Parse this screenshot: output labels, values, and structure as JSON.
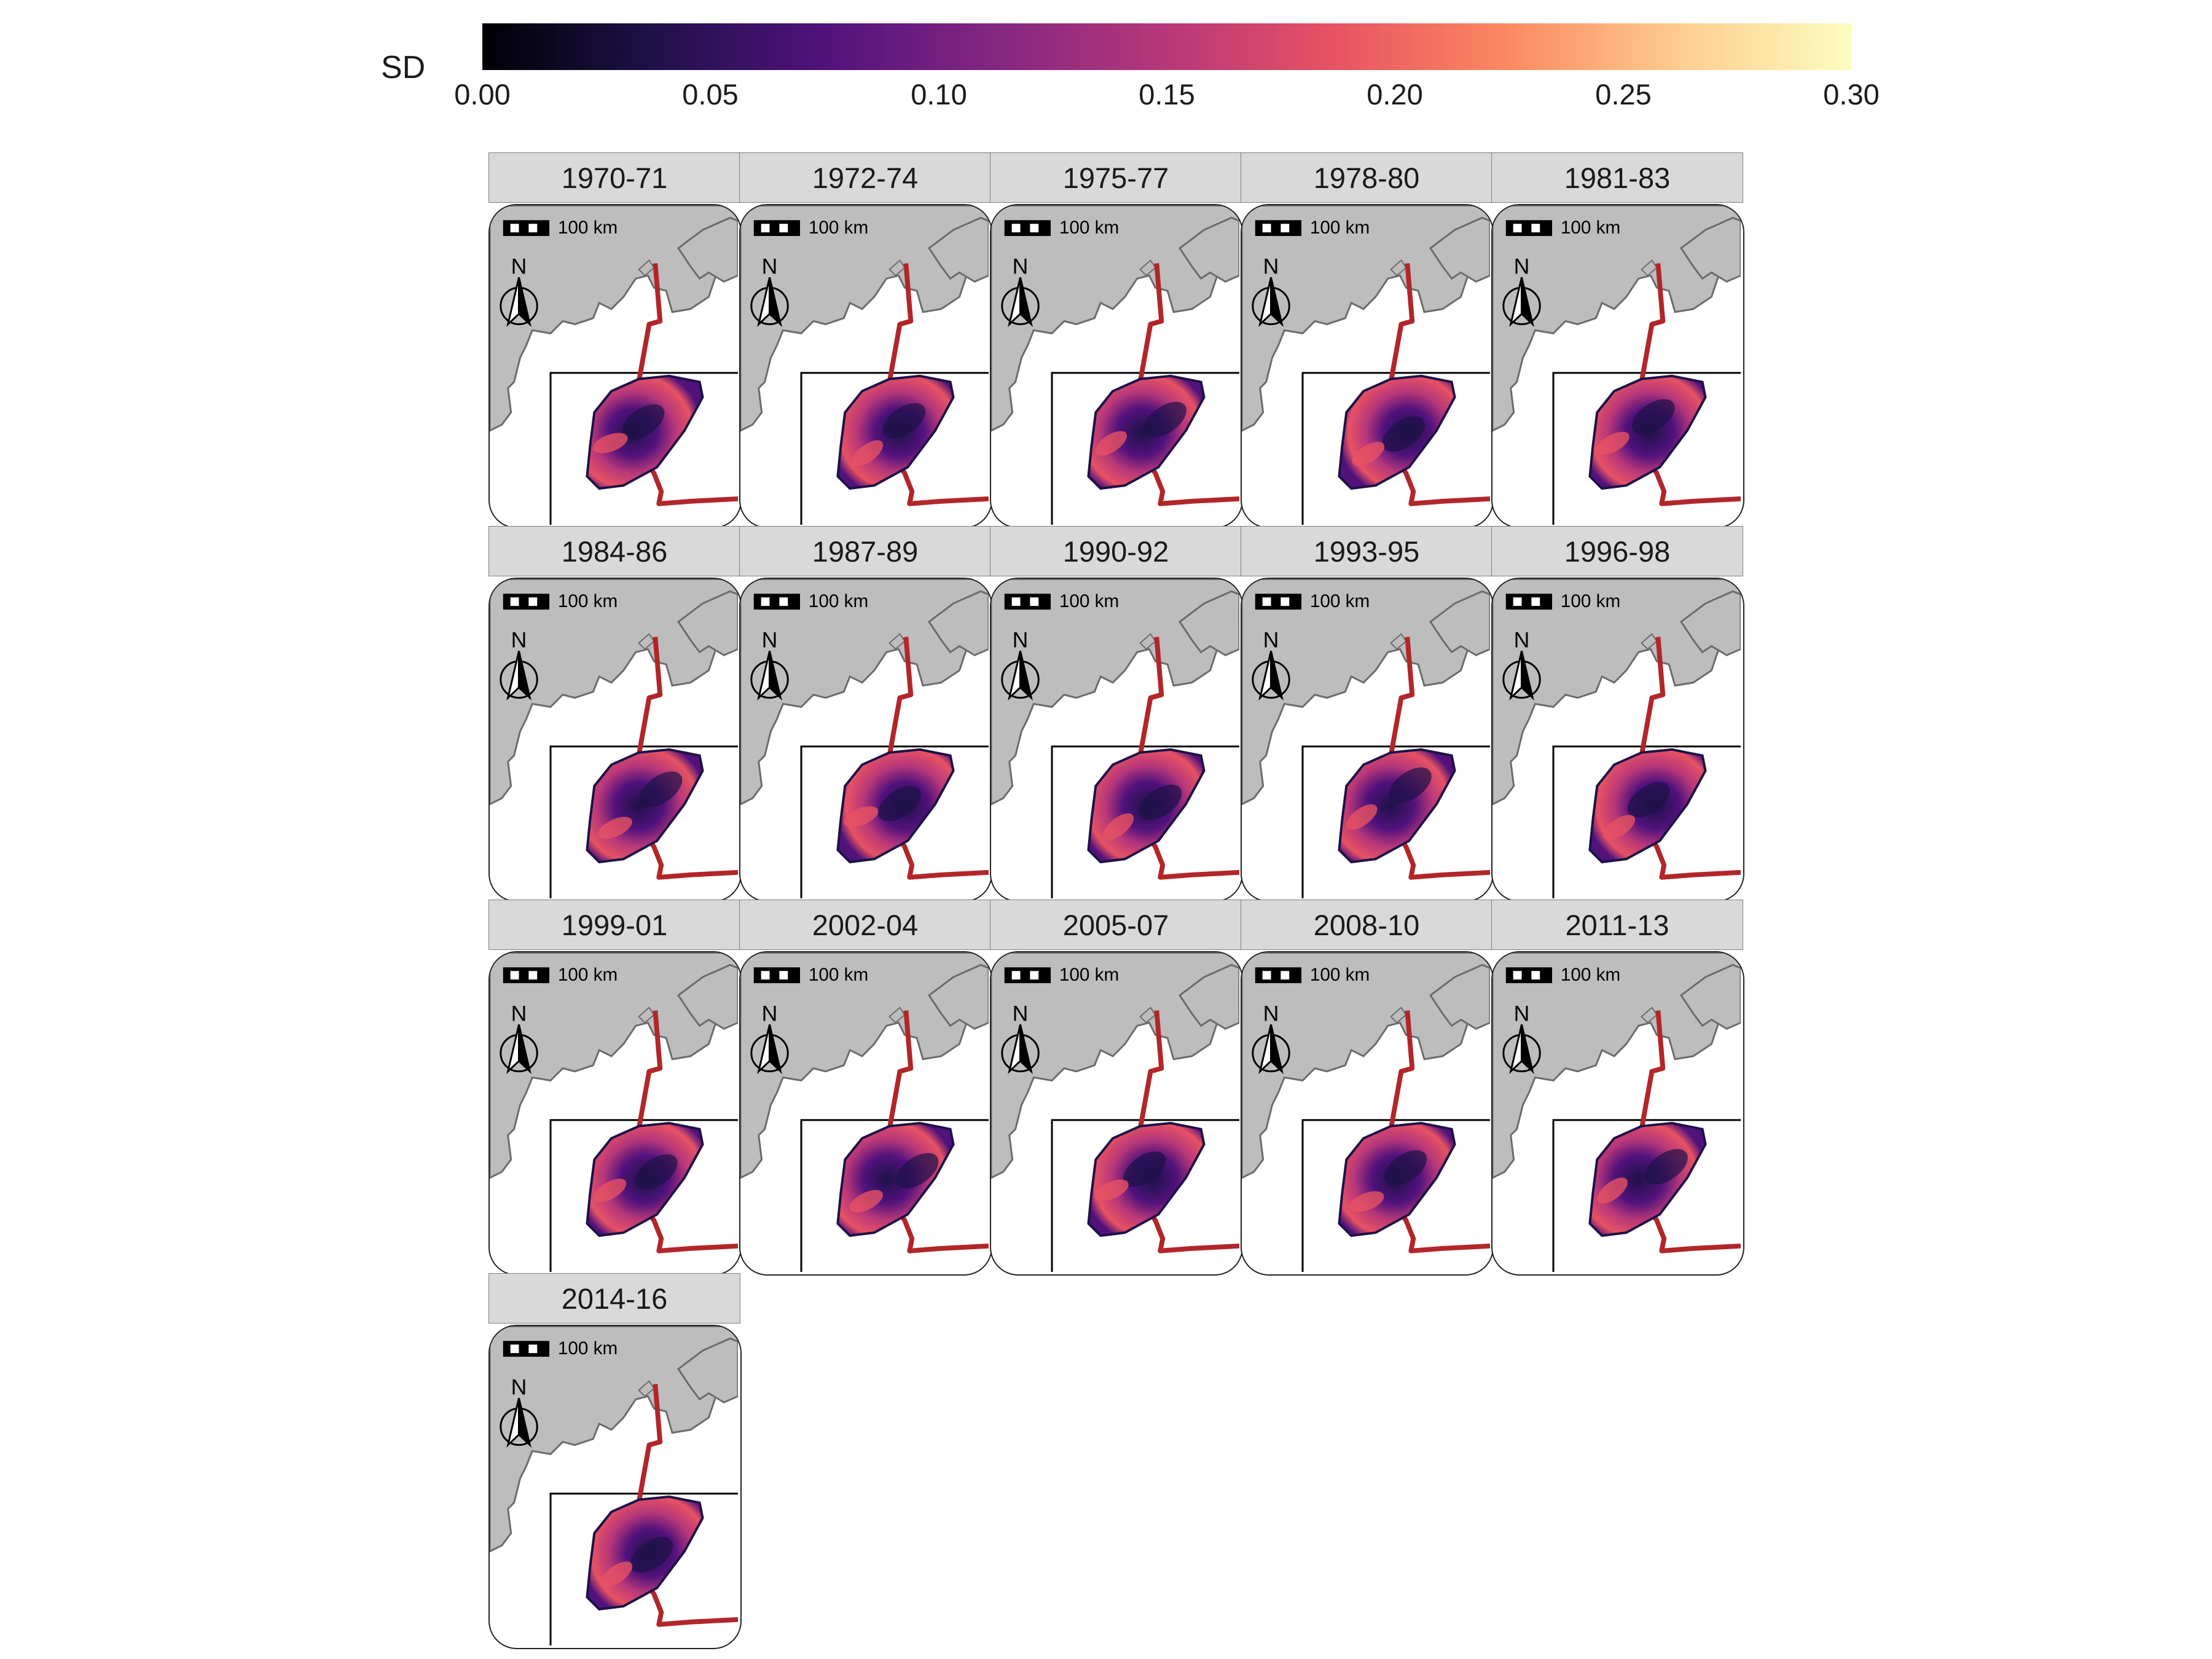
{
  "legend": {
    "title": "SD",
    "ticks": [
      "0.00",
      "0.05",
      "0.10",
      "0.15",
      "0.20",
      "0.25",
      "0.30"
    ],
    "range": [
      0,
      0.3
    ],
    "palette": [
      "#000004",
      "#1d1147",
      "#51127c",
      "#822681",
      "#b73779",
      "#e75263",
      "#fc8961",
      "#fecf92",
      "#fcfdbf"
    ]
  },
  "map": {
    "scale_bar_label": "100 km",
    "north_label": "N",
    "land_color": "#bdbdbd",
    "coast_color": "#6b6b6b",
    "boundary_color": "#b2262a"
  },
  "panels": [
    {
      "label": "1970-71"
    },
    {
      "label": "1972-74"
    },
    {
      "label": "1975-77"
    },
    {
      "label": "1978-80"
    },
    {
      "label": "1981-83"
    },
    {
      "label": "1984-86"
    },
    {
      "label": "1987-89"
    },
    {
      "label": "1990-92"
    },
    {
      "label": "1993-95"
    },
    {
      "label": "1996-98"
    },
    {
      "label": "1999-01"
    },
    {
      "label": "2002-04"
    },
    {
      "label": "2005-07"
    },
    {
      "label": "2008-10"
    },
    {
      "label": "2011-13"
    },
    {
      "label": "2014-16"
    }
  ]
}
